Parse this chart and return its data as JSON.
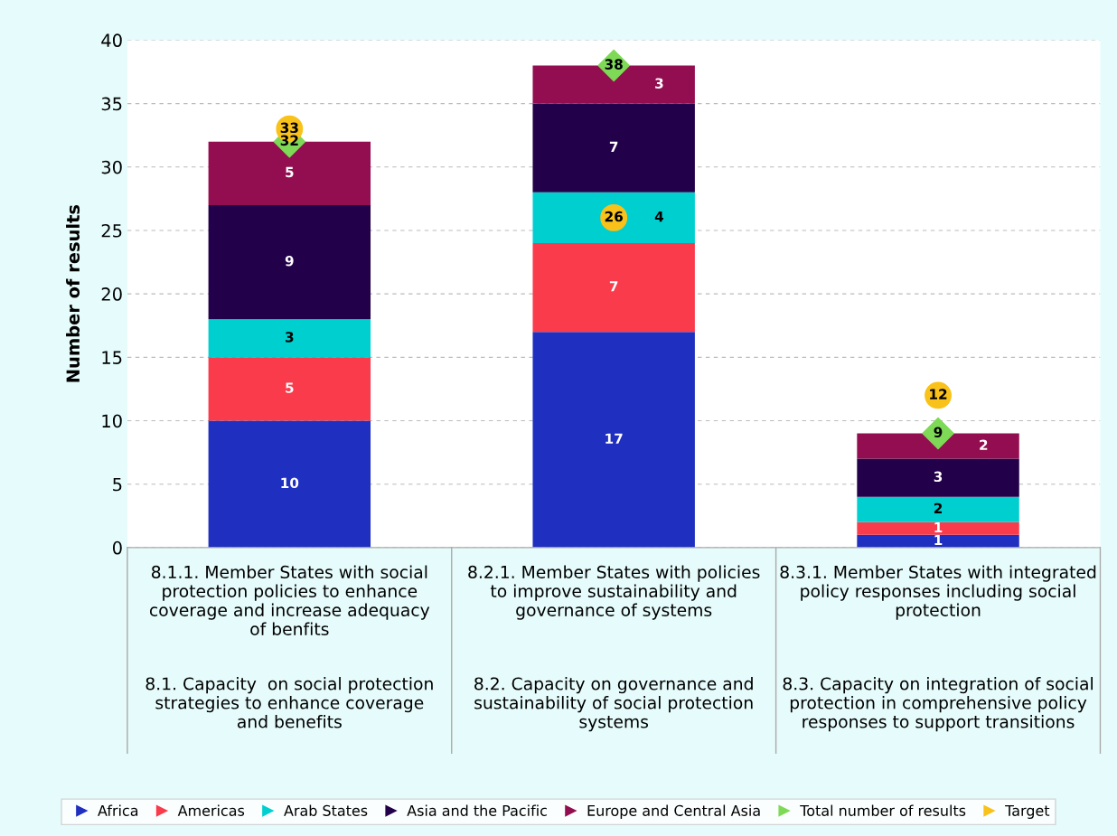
{
  "chart_data": {
    "type": "bar",
    "stacked": true,
    "ylabel": "Number of results",
    "categories": [
      "8.1.1. Member States with social\nprotection policies to enhance\ncoverage and increase adequacy\nof benfits",
      "8.2.1. Member States with policies\nto improve sustainability and\ngovernance of systems",
      "8.3.1. Member States with integrated\npolicy responses including social\nprotection"
    ],
    "annotations": [
      "8.1. Capacity  on social protection\nstrategies to enhance coverage\nand benefits",
      "8.2. Capacity on governance and\nsustainability of social protection\nsystems",
      "8.3. Capacity on integration of social\nprotection in comprehensive policy\nresponses to support transitions"
    ],
    "series": [
      {
        "name": "Africa",
        "color": "#1f2fbf",
        "values": [
          10,
          17,
          1
        ]
      },
      {
        "name": "Americas",
        "color": "#f93b4b",
        "values": [
          5,
          7,
          1
        ]
      },
      {
        "name": "Arab States",
        "color": "#00cfd0",
        "values": [
          3,
          4,
          2
        ]
      },
      {
        "name": "Asia and the Pacific",
        "color": "#22004a",
        "values": [
          9,
          7,
          3
        ]
      },
      {
        "name": "Europe and Central Asia",
        "color": "#930e50",
        "values": [
          5,
          3,
          2
        ]
      },
      {
        "name": "Total number of results",
        "type": "scatter",
        "marker": "diamond",
        "color": "#7ed957",
        "values": [
          32,
          38,
          9
        ]
      },
      {
        "name": "Target",
        "type": "scatter",
        "marker": "circle",
        "color": "#f9c21a",
        "values": [
          33,
          26,
          12
        ]
      }
    ],
    "ylim": [
      0,
      40
    ],
    "yticks": [
      0,
      5,
      10,
      15,
      20,
      25,
      30,
      35,
      40
    ],
    "grid": "y",
    "legend": "bottom",
    "data_labels": true
  }
}
